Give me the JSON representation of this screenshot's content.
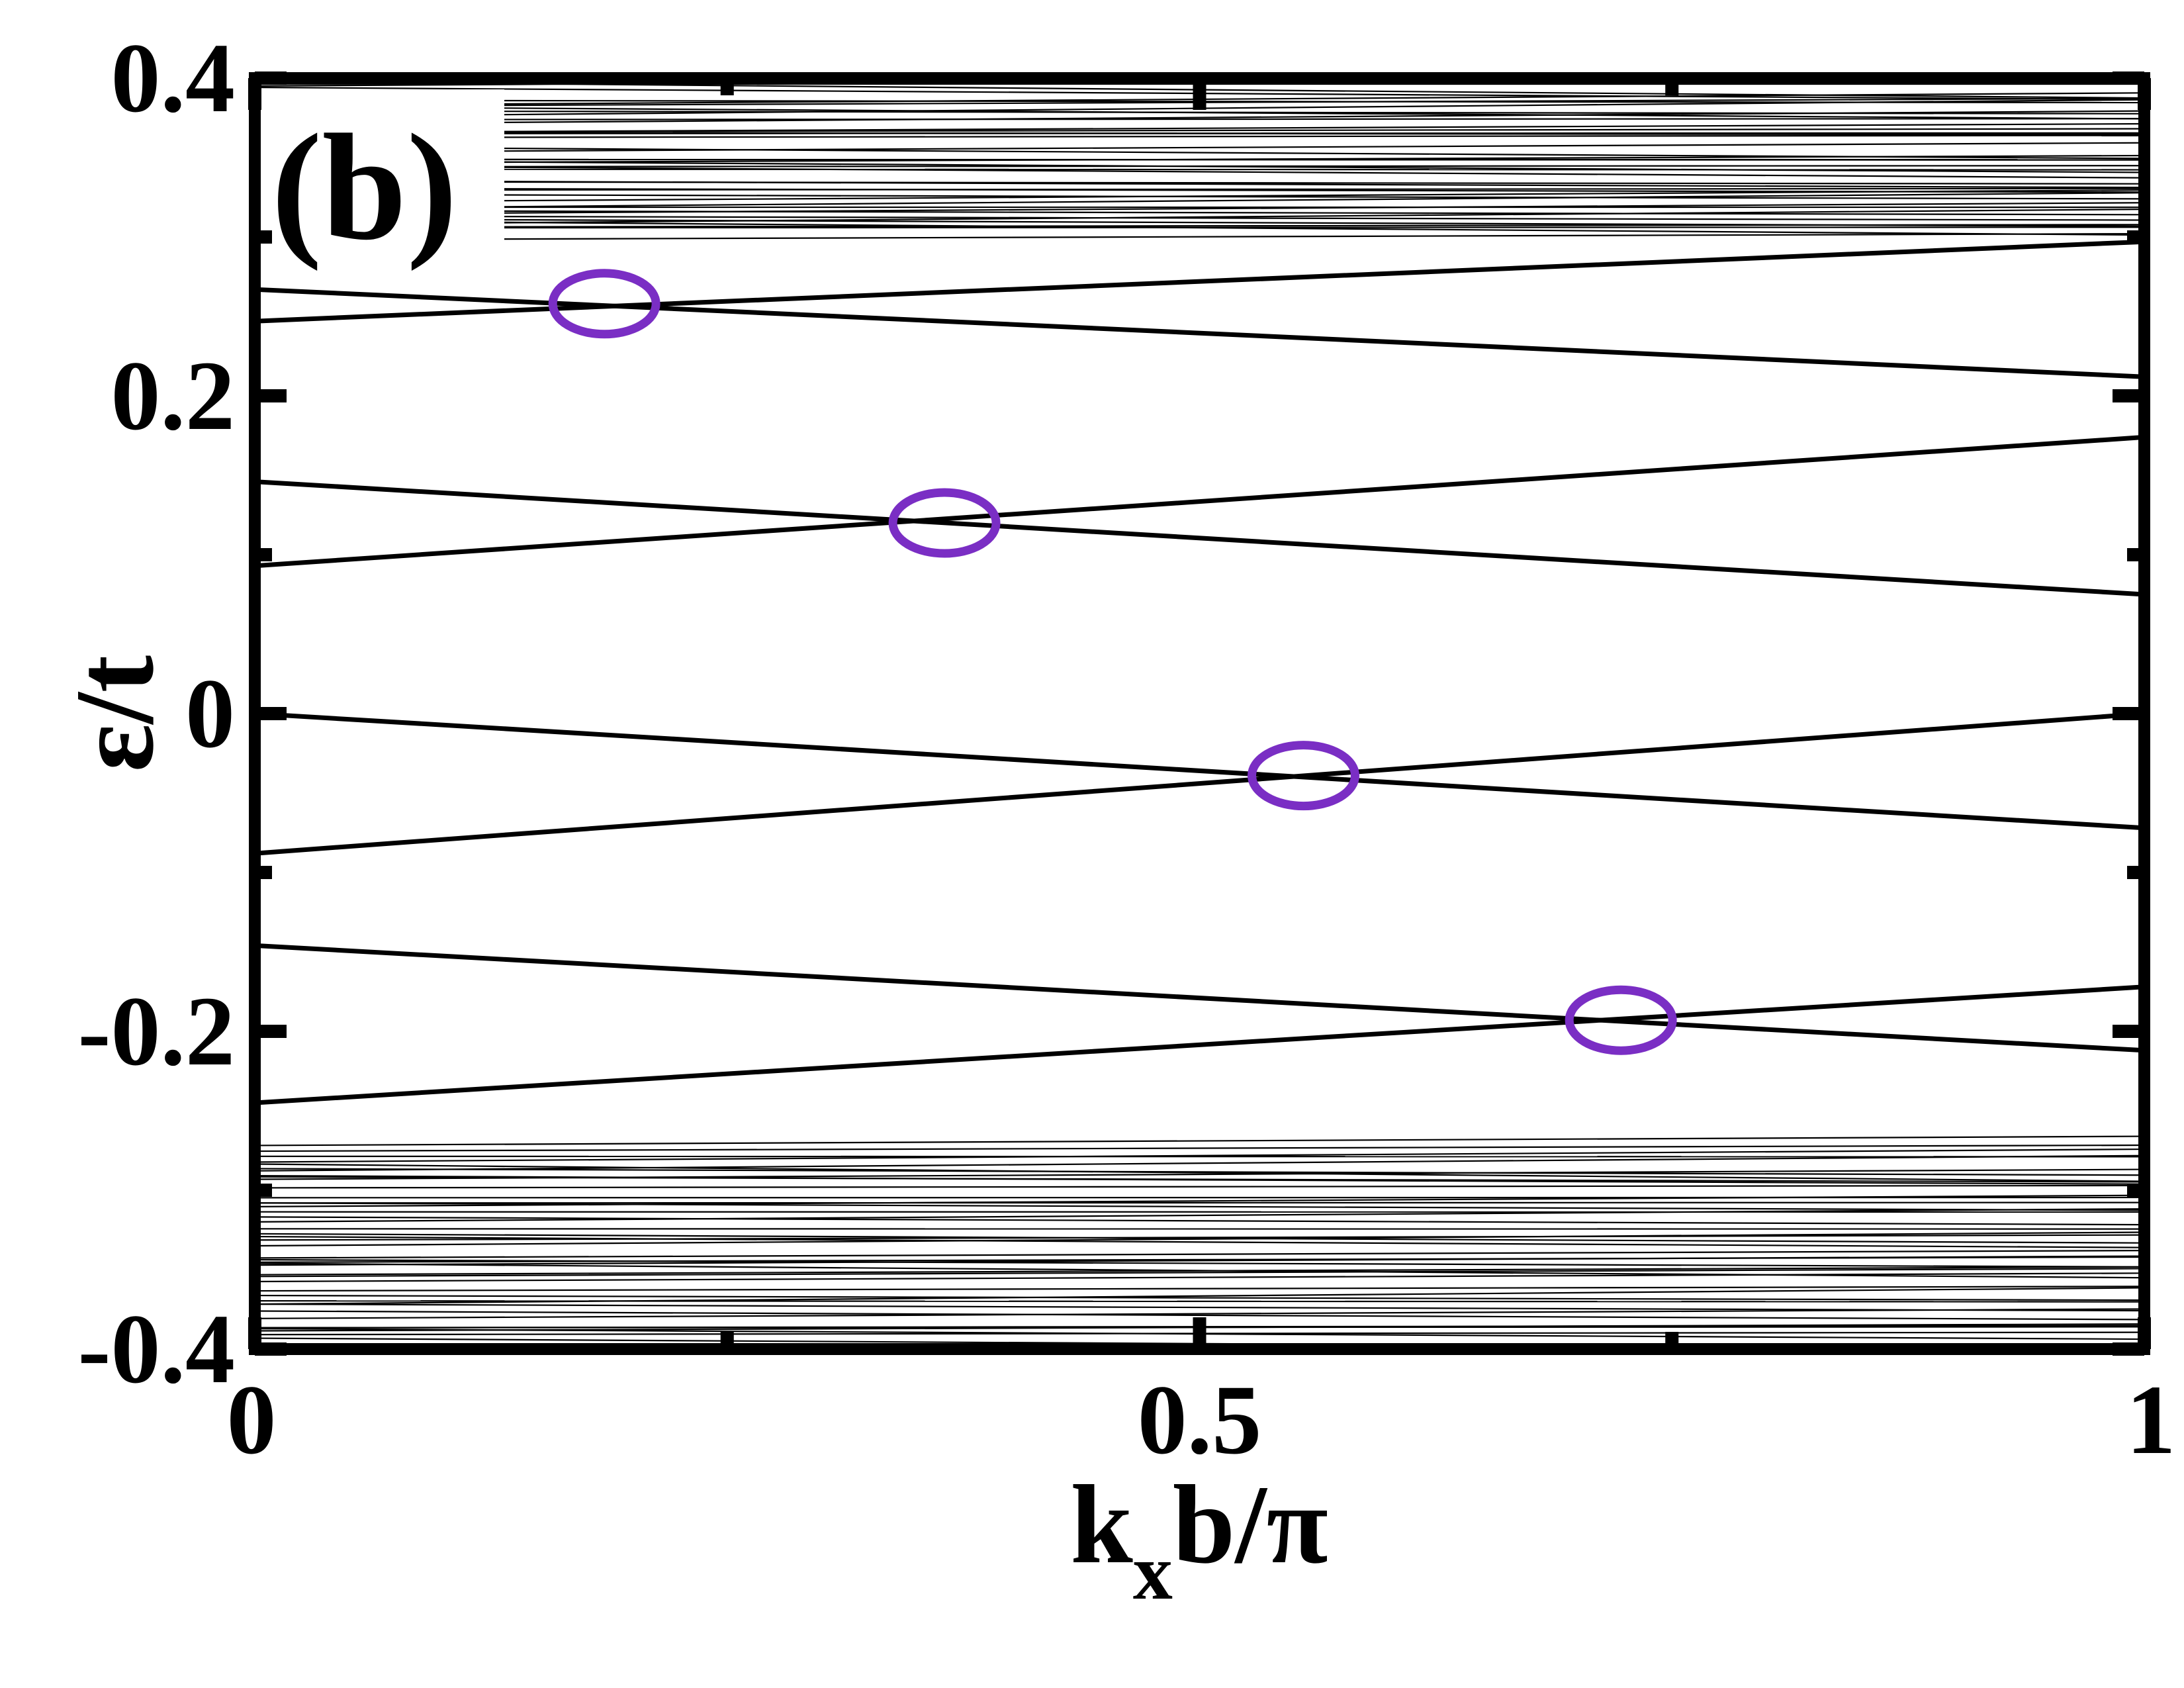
{
  "chart_data": {
    "type": "line",
    "panel_label": "(b)",
    "xlabel": {
      "main": "k",
      "sub": "x",
      "rest": "b/π"
    },
    "ylabel": "ε/t",
    "xlim": [
      0,
      1
    ],
    "ylim": [
      -0.4,
      0.4
    ],
    "x_tick_labels": [
      "0",
      "0.5",
      "1"
    ],
    "x_ticks": [
      0,
      0.5,
      1
    ],
    "y_tick_labels": [
      "-0.4",
      "-0.2",
      "0",
      "0.2",
      "0.4"
    ],
    "y_ticks": [
      -0.4,
      -0.2,
      0,
      0.2,
      0.4
    ],
    "y_minor_ticks": [
      -0.3,
      -0.1,
      0.1,
      0.3
    ],
    "x_minor_ticks": [
      0.25,
      0.75
    ],
    "grid": false,
    "band_line_color": "#000000",
    "marker_color": "#7a2ec4",
    "edge_states": [
      {
        "x": [
          0,
          1
        ],
        "y": [
          0.267,
          0.212
        ]
      },
      {
        "x": [
          0,
          1
        ],
        "y": [
          0.247,
          0.297
        ]
      },
      {
        "x": [
          0,
          1
        ],
        "y": [
          0.146,
          0.075
        ]
      },
      {
        "x": [
          0,
          1
        ],
        "y": [
          0.093,
          0.174
        ]
      },
      {
        "x": [
          0,
          1
        ],
        "y": [
          0.0,
          -0.072
        ]
      },
      {
        "x": [
          0,
          1
        ],
        "y": [
          -0.088,
          0.0
        ]
      },
      {
        "x": [
          0,
          1
        ],
        "y": [
          -0.146,
          -0.212
        ]
      },
      {
        "x": [
          0,
          1
        ],
        "y": [
          -0.245,
          -0.172
        ]
      }
    ],
    "bulk_bands": {
      "upper_range": [
        0.3,
        0.4
      ],
      "lower_range": [
        -0.4,
        -0.27
      ],
      "upper_count": 45,
      "lower_count": 45
    },
    "crossings": [
      {
        "x": 0.185,
        "y": 0.258
      },
      {
        "x": 0.365,
        "y": 0.12
      },
      {
        "x": 0.555,
        "y": -0.039
      },
      {
        "x": 0.723,
        "y": -0.193
      }
    ]
  }
}
